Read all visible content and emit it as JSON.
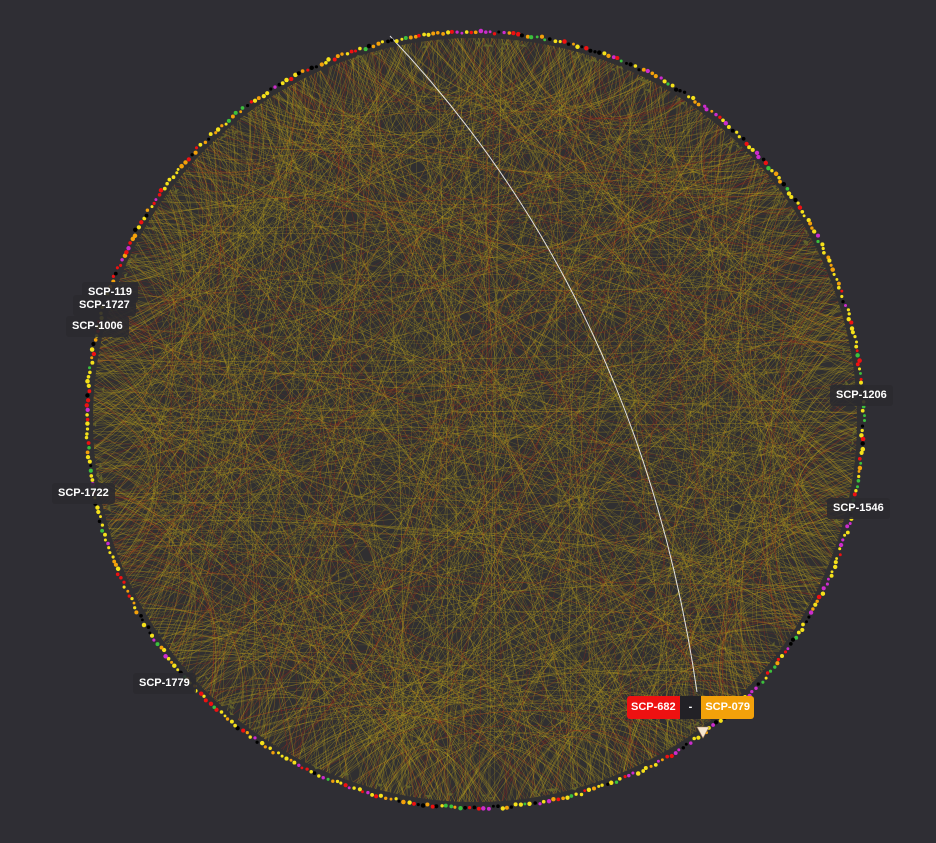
{
  "labels": {
    "scp_119": "SCP-119",
    "scp_1727": "SCP-1727",
    "scp_1006": "SCP-1006",
    "scp_1722": "SCP-1722",
    "scp_1779": "SCP-1779",
    "scp_1206": "SCP-1206",
    "scp_1546": "SCP-1546"
  },
  "edge_label": {
    "source": "SCP-682",
    "connector": "-",
    "target": "SCP-079"
  },
  "colors": {
    "background": "#2f2e34",
    "edge": "#b49b1e",
    "edge_red": "#a0281e",
    "highlight_edge": "#ffffff",
    "node_yellow": "#f5e11a",
    "node_orange": "#f3a10a",
    "node_red": "#ee1111",
    "node_black": "#000000",
    "node_green": "#3cc03c",
    "node_magenta": "#cc2ccc",
    "source_box": "#ee1111",
    "target_box": "#f3a10a"
  }
}
